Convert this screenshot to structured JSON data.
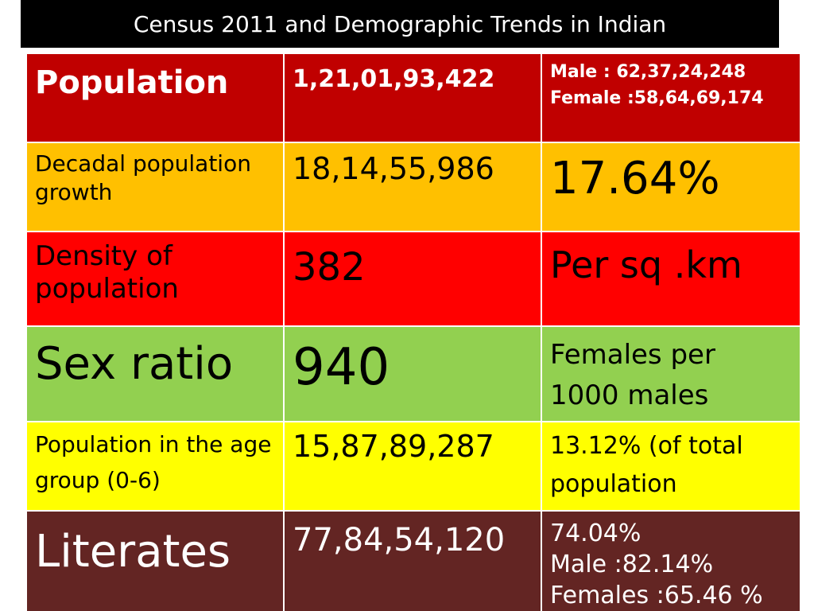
{
  "slide": {
    "title": "Census 2011 and Demographic Trends in Indian"
  },
  "rows": [
    {
      "label": "Population",
      "value": "1,21,01,93,422",
      "extra": [
        "Male : 62,37,24,248",
        "Female :58,64,69,174"
      ]
    },
    {
      "label": "Decadal population growth",
      "value": "18,14,55,986",
      "extra": [
        "17.64%"
      ]
    },
    {
      "label": "Density of population",
      "value": "382",
      "extra": [
        "Per sq .km"
      ]
    },
    {
      "label": "Sex ratio",
      "value": "940",
      "extra": [
        "Females per",
        "1000 males"
      ]
    },
    {
      "label": "Population in the age group (0-6)",
      "value": "15,87,89,287",
      "extra": [
        "13.12% (of total",
        "population"
      ]
    },
    {
      "label": "Literates",
      "value": "77,84,54,120",
      "extra": [
        "74.04%",
        "Male :82.14%",
        "Females :65.46 %"
      ]
    }
  ],
  "colors": {
    "population": "#c00000",
    "growth": "#ffc000",
    "density": "#ff0000",
    "sex_ratio": "#92d050",
    "age_group": "#ffff00",
    "literates": "#632523"
  }
}
